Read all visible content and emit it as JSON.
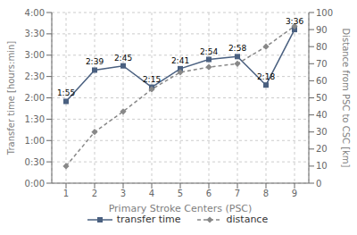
{
  "chart_data": {
    "type": "line",
    "x": [
      1,
      2,
      3,
      4,
      5,
      6,
      7,
      8,
      9
    ],
    "xlim": [
      0.5,
      9.5
    ],
    "xticks": [
      1,
      2,
      3,
      4,
      5,
      6,
      7,
      8,
      9
    ],
    "xlabel": "Primary Stroke Centers (PSC)",
    "ylabel": "Transfer time [hours:min]",
    "y2label": "Distance from PSC to CSC [km]",
    "ylim": [
      0,
      240
    ],
    "yticks": [
      {
        "value": 0,
        "label": "0:00"
      },
      {
        "value": 30,
        "label": "0:30"
      },
      {
        "value": 60,
        "label": "1:00"
      },
      {
        "value": 90,
        "label": "1:30"
      },
      {
        "value": 120,
        "label": "2:00"
      },
      {
        "value": 150,
        "label": "2:30"
      },
      {
        "value": 180,
        "label": "3:00"
      },
      {
        "value": 210,
        "label": "3:30"
      },
      {
        "value": 240,
        "label": "4:00"
      }
    ],
    "y2lim": [
      0,
      100
    ],
    "y2ticks": [
      0,
      10,
      20,
      30,
      40,
      50,
      60,
      70,
      80,
      90,
      100
    ],
    "grid": true,
    "legend": "bottom",
    "series": [
      {
        "name": "transfer time",
        "color": "#4a6080",
        "marker": "square",
        "line_style": "solid",
        "axis": "y",
        "data_labels": true,
        "values": [
          115,
          159,
          165,
          135,
          161,
          174,
          178,
          138,
          216
        ],
        "value_labels": [
          "1:55",
          "2:39",
          "2:45",
          "2:15",
          "2:41",
          "2:54",
          "2:58",
          "2:18",
          "3:36"
        ]
      },
      {
        "name": "distance",
        "color": "#888888",
        "marker": "diamond",
        "line_style": "dashed",
        "axis": "y2",
        "values": [
          10,
          30,
          42,
          55,
          65,
          68,
          70,
          80,
          92
        ]
      }
    ]
  }
}
